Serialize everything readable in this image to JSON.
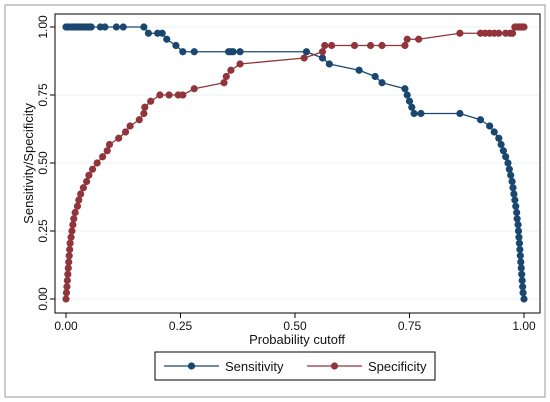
{
  "chart_data": {
    "type": "line",
    "xlabel": "Probability cutoff",
    "ylabel": "Sensitivity/Specificity",
    "xlim": [
      0,
      1
    ],
    "ylim": [
      0,
      1
    ],
    "xticks": [
      0,
      0.25,
      0.5,
      0.75,
      1
    ],
    "xtick_labels": [
      "0.00",
      "0.25",
      "0.50",
      "0.75",
      "1.00"
    ],
    "yticks": [
      0,
      0.25,
      0.5,
      0.75,
      1
    ],
    "ytick_labels": [
      "0.00",
      "0.25",
      "0.50",
      "0.75",
      "1.00"
    ],
    "grid": "horizontal",
    "legend_position": "bottom",
    "series": [
      {
        "name": "Sensitivity",
        "color": "#1a476f",
        "points": [
          [
            0.0,
            1.0
          ],
          [
            0.005,
            1.0
          ],
          [
            0.01,
            1.0
          ],
          [
            0.015,
            1.0
          ],
          [
            0.02,
            1.0
          ],
          [
            0.025,
            1.0
          ],
          [
            0.03,
            1.0
          ],
          [
            0.035,
            1.0
          ],
          [
            0.04,
            1.0
          ],
          [
            0.045,
            1.0
          ],
          [
            0.05,
            1.0
          ],
          [
            0.055,
            1.0
          ],
          [
            0.075,
            1.0
          ],
          [
            0.085,
            1.0
          ],
          [
            0.11,
            1.0
          ],
          [
            0.125,
            1.0
          ],
          [
            0.17,
            1.0
          ],
          [
            0.18,
            0.977
          ],
          [
            0.2,
            0.977
          ],
          [
            0.21,
            0.977
          ],
          [
            0.22,
            0.955
          ],
          [
            0.24,
            0.932
          ],
          [
            0.255,
            0.909
          ],
          [
            0.28,
            0.909
          ],
          [
            0.355,
            0.909
          ],
          [
            0.36,
            0.909
          ],
          [
            0.365,
            0.909
          ],
          [
            0.38,
            0.909
          ],
          [
            0.525,
            0.909
          ],
          [
            0.56,
            0.886
          ],
          [
            0.575,
            0.864
          ],
          [
            0.64,
            0.841
          ],
          [
            0.675,
            0.818
          ],
          [
            0.69,
            0.795
          ],
          [
            0.74,
            0.773
          ],
          [
            0.745,
            0.75
          ],
          [
            0.75,
            0.727
          ],
          [
            0.755,
            0.705
          ],
          [
            0.76,
            0.682
          ],
          [
            0.775,
            0.682
          ],
          [
            0.86,
            0.682
          ],
          [
            0.905,
            0.659
          ],
          [
            0.925,
            0.636
          ],
          [
            0.935,
            0.614
          ],
          [
            0.945,
            0.591
          ],
          [
            0.95,
            0.568
          ],
          [
            0.955,
            0.545
          ],
          [
            0.96,
            0.523
          ],
          [
            0.965,
            0.5
          ],
          [
            0.968,
            0.477
          ],
          [
            0.971,
            0.455
          ],
          [
            0.974,
            0.432
          ],
          [
            0.976,
            0.409
          ],
          [
            0.978,
            0.386
          ],
          [
            0.98,
            0.364
          ],
          [
            0.982,
            0.341
          ],
          [
            0.984,
            0.318
          ],
          [
            0.985,
            0.295
          ],
          [
            0.987,
            0.273
          ],
          [
            0.988,
            0.25
          ],
          [
            0.989,
            0.227
          ],
          [
            0.99,
            0.205
          ],
          [
            0.991,
            0.182
          ],
          [
            0.992,
            0.159
          ],
          [
            0.993,
            0.136
          ],
          [
            0.994,
            0.114
          ],
          [
            0.995,
            0.091
          ],
          [
            0.996,
            0.068
          ],
          [
            0.997,
            0.045
          ],
          [
            0.998,
            0.023
          ],
          [
            1.0,
            0.0
          ]
        ]
      },
      {
        "name": "Specificity",
        "color": "#90353b",
        "points": [
          [
            0.0,
            0.0
          ],
          [
            0.001,
            0.023
          ],
          [
            0.002,
            0.045
          ],
          [
            0.003,
            0.068
          ],
          [
            0.004,
            0.091
          ],
          [
            0.005,
            0.114
          ],
          [
            0.006,
            0.136
          ],
          [
            0.007,
            0.159
          ],
          [
            0.008,
            0.182
          ],
          [
            0.009,
            0.205
          ],
          [
            0.011,
            0.227
          ],
          [
            0.013,
            0.25
          ],
          [
            0.015,
            0.273
          ],
          [
            0.017,
            0.295
          ],
          [
            0.02,
            0.318
          ],
          [
            0.025,
            0.341
          ],
          [
            0.028,
            0.364
          ],
          [
            0.032,
            0.386
          ],
          [
            0.038,
            0.409
          ],
          [
            0.045,
            0.432
          ],
          [
            0.05,
            0.455
          ],
          [
            0.058,
            0.477
          ],
          [
            0.068,
            0.5
          ],
          [
            0.08,
            0.523
          ],
          [
            0.09,
            0.545
          ],
          [
            0.095,
            0.568
          ],
          [
            0.115,
            0.591
          ],
          [
            0.13,
            0.614
          ],
          [
            0.14,
            0.636
          ],
          [
            0.16,
            0.659
          ],
          [
            0.17,
            0.682
          ],
          [
            0.172,
            0.705
          ],
          [
            0.185,
            0.727
          ],
          [
            0.205,
            0.75
          ],
          [
            0.225,
            0.75
          ],
          [
            0.245,
            0.75
          ],
          [
            0.255,
            0.75
          ],
          [
            0.28,
            0.773
          ],
          [
            0.345,
            0.795
          ],
          [
            0.35,
            0.818
          ],
          [
            0.36,
            0.841
          ],
          [
            0.38,
            0.864
          ],
          [
            0.52,
            0.886
          ],
          [
            0.56,
            0.909
          ],
          [
            0.565,
            0.932
          ],
          [
            0.58,
            0.932
          ],
          [
            0.63,
            0.932
          ],
          [
            0.665,
            0.932
          ],
          [
            0.69,
            0.932
          ],
          [
            0.74,
            0.932
          ],
          [
            0.745,
            0.955
          ],
          [
            0.77,
            0.955
          ],
          [
            0.86,
            0.977
          ],
          [
            0.905,
            0.977
          ],
          [
            0.915,
            0.977
          ],
          [
            0.925,
            0.977
          ],
          [
            0.935,
            0.977
          ],
          [
            0.945,
            0.977
          ],
          [
            0.96,
            0.977
          ],
          [
            0.97,
            0.977
          ],
          [
            0.975,
            0.977
          ],
          [
            0.98,
            1.0
          ],
          [
            0.985,
            1.0
          ],
          [
            0.99,
            1.0
          ],
          [
            0.993,
            1.0
          ],
          [
            0.996,
            1.0
          ],
          [
            1.0,
            1.0
          ]
        ]
      }
    ]
  }
}
